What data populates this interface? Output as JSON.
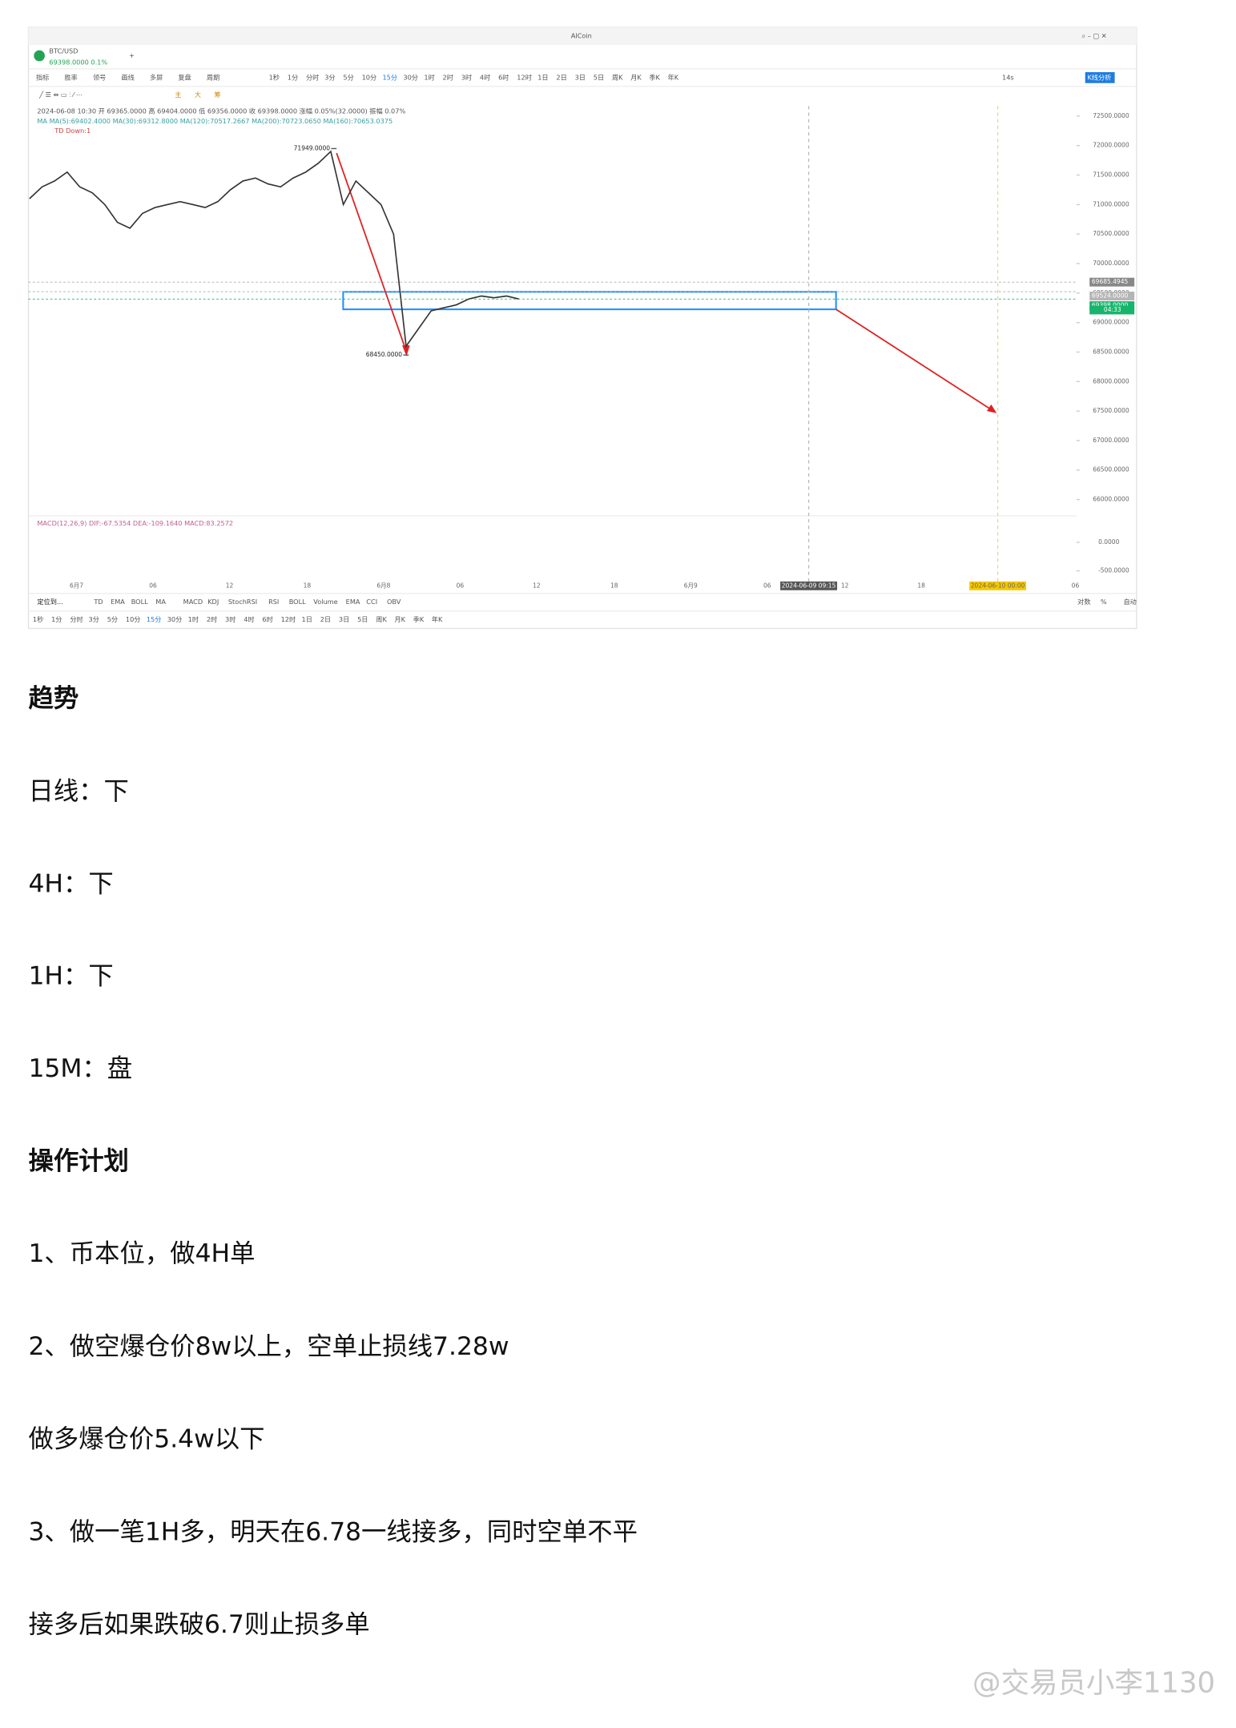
{
  "window": {
    "title": "AICoin",
    "symbol": "BTC/USD",
    "quote": "69398.0000  0.1%"
  },
  "toolbar": {
    "items": [
      "指标",
      "胜率",
      "领号",
      "画线",
      "多屏",
      "复盘",
      "周期"
    ],
    "periods": [
      "1秒",
      "1分",
      "分时",
      "3分",
      "5分",
      "10分",
      "15分",
      "30分",
      "1时",
      "2时",
      "3时",
      "4时",
      "6时",
      "12时",
      "1日",
      "2日",
      "3日",
      "5日",
      "周K",
      "月K",
      "季K",
      "年K"
    ],
    "refresh": "14s",
    "analysis_button": "K线分析",
    "draw_tools": [
      "主",
      "大",
      "筹"
    ]
  },
  "info": {
    "ohlc": "2024-06-08 10:30  开 69365.0000  高 69404.0000  低 69356.0000  收 69398.0000  涨幅 0.05%(32.0000)  振幅 0.07%",
    "ma": "MA   MA(5):69402.4000   MA(30):69312.8000   MA(120):70517.2667   MA(200):70723.0650   MA(160):70653.0375",
    "td": "TD   Down:1",
    "macd": "MACD(12,26,9)   DIF:-67.5354   DEA:-109.1640   MACD:83.2572"
  },
  "chart_data": {
    "type": "line",
    "color": "#333333",
    "values": [
      71100,
      71300,
      71400,
      71550,
      71300,
      71200,
      71000,
      70700,
      70600,
      70850,
      70950,
      71000,
      71050,
      71000,
      70950,
      71050,
      71250,
      71400,
      71450,
      71350,
      71300,
      71450,
      71550,
      71700,
      71900,
      71000,
      71400,
      71200,
      71000,
      70500,
      68600,
      68900,
      69200,
      69250,
      69300,
      69400,
      69450,
      69420,
      69450,
      69398
    ],
    "ylim": [
      65760,
      72670
    ],
    "yticks": [
      {
        "value": 72500,
        "label": "72500.0000"
      },
      {
        "value": 72000,
        "label": "72000.0000"
      },
      {
        "value": 71500,
        "label": "71500.0000"
      },
      {
        "value": 71000,
        "label": "71000.0000"
      },
      {
        "value": 70500,
        "label": "70500.0000"
      },
      {
        "value": 70000,
        "label": "70000.0000"
      },
      {
        "value": 69500,
        "label": "69500.0000"
      },
      {
        "value": 69000,
        "label": "69000.0000"
      },
      {
        "value": 68500,
        "label": "68500.0000"
      },
      {
        "value": 68000,
        "label": "68000.0000"
      },
      {
        "value": 67500,
        "label": "67500.0000"
      },
      {
        "value": 67000,
        "label": "67000.0000"
      },
      {
        "value": 66500,
        "label": "66500.0000"
      },
      {
        "value": 66000,
        "label": "66000.0000"
      }
    ],
    "high": {
      "value": 71949,
      "label": "71949.0000"
    },
    "low": {
      "value": 68450,
      "label": "68450.0000"
    },
    "price_tags": [
      {
        "value": 69685.4945,
        "label": "69685.4945"
      },
      {
        "value": 69524,
        "label": "69524.0000"
      },
      {
        "value": 69398,
        "label": "69398.0000"
      }
    ],
    "countdown": "04:33",
    "time_axis": [
      "6月7",
      "06",
      "12",
      "18",
      "6月8",
      "06",
      "12",
      "18",
      "6月9",
      "06",
      "2024-06-09 09:15",
      "12",
      "18",
      "2024-06-10 00:00",
      "06"
    ],
    "macd_lim": [
      -648,
      463
    ],
    "macd_ticks": [
      {
        "value": 0,
        "label": "0.0000"
      },
      {
        "value": -500,
        "label": "-500.0000"
      }
    ]
  },
  "bottom_bar": {
    "locate": "定位到...",
    "indicators": [
      "TD",
      "EMA",
      "BOLL",
      "MA",
      "MACD",
      "KDJ",
      "StochRSI",
      "RSI",
      "BOLL",
      "Volume",
      "EMA",
      "CCI",
      "OBV"
    ],
    "options": [
      "对数",
      "%",
      "自动"
    ]
  },
  "body": {
    "trend_heading": "趋势",
    "trend": [
      "日线：下",
      "4H：下",
      "1H：下",
      "15M：盘"
    ],
    "plan_heading": "操作计划",
    "plan": [
      "1、币本位，做4H单",
      "2、做空爆仓价8w以上，空单止损线7.28w",
      "做多爆仓价5.4w以下",
      "3、做一笔1H多，明天在6.78一线接多，同时空单不平",
      "接多后如果跌破6.7则止损多单"
    ],
    "watermark": "@交易员小李1130"
  }
}
